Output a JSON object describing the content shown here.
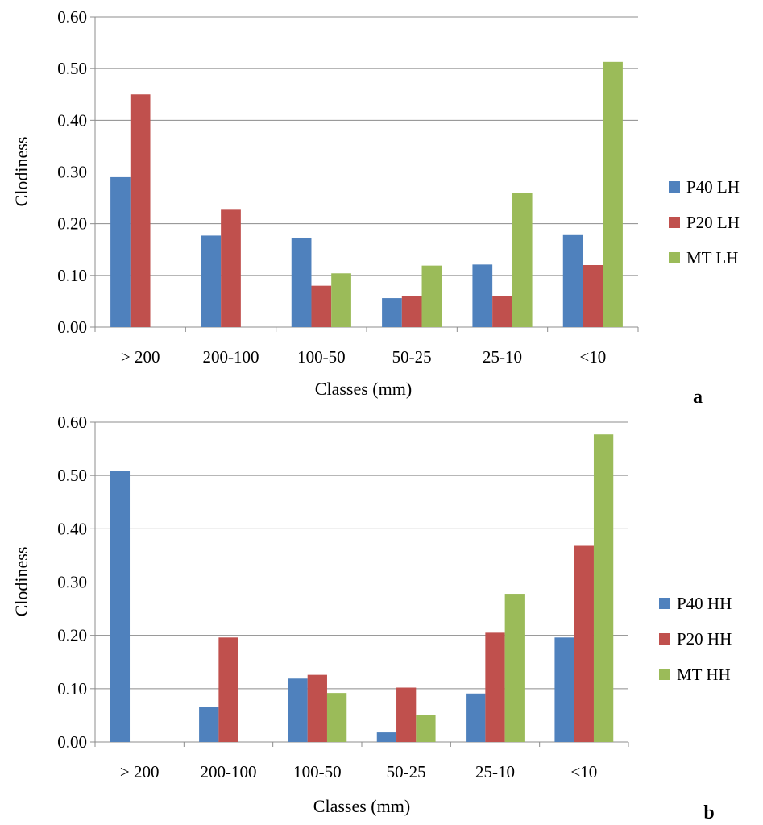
{
  "chart_data": [
    {
      "type": "bar",
      "panel_label": "a",
      "title": "",
      "xlabel": "Classes (mm)",
      "ylabel": "Clodiness",
      "ylim": [
        0,
        0.6
      ],
      "yticks": [
        "0.00",
        "0.10",
        "0.20",
        "0.30",
        "0.40",
        "0.50",
        "0.60"
      ],
      "grid": true,
      "legend_position": "right",
      "categories": [
        "> 200",
        "200-100",
        "100-50",
        "50-25",
        "25-10",
        "<10"
      ],
      "series": [
        {
          "name": "P40 LH",
          "color": "#4f81bd",
          "values": [
            0.29,
            0.177,
            0.173,
            0.056,
            0.121,
            0.178
          ]
        },
        {
          "name": "P20 LH",
          "color": "#c0504d",
          "values": [
            0.45,
            0.227,
            0.08,
            0.06,
            0.06,
            0.12
          ]
        },
        {
          "name": "MT LH",
          "color": "#9bbb59",
          "values": [
            0,
            0,
            0.104,
            0.119,
            0.259,
            0.513
          ]
        }
      ]
    },
    {
      "type": "bar",
      "panel_label": "b",
      "title": "",
      "xlabel": "Classes (mm)",
      "ylabel": "Clodiness",
      "ylim": [
        0,
        0.6
      ],
      "yticks": [
        "0.00",
        "0.10",
        "0.20",
        "0.30",
        "0.40",
        "0.50",
        "0.60"
      ],
      "grid": true,
      "legend_position": "right",
      "categories": [
        "> 200",
        "200-100",
        "100-50",
        "50-25",
        "25-10",
        "<10"
      ],
      "series": [
        {
          "name": "P40 HH",
          "color": "#4f81bd",
          "values": [
            0.508,
            0.065,
            0.119,
            0.018,
            0.091,
            0.196
          ]
        },
        {
          "name": "P20 HH",
          "color": "#c0504d",
          "values": [
            0,
            0.196,
            0.126,
            0.102,
            0.205,
            0.368
          ]
        },
        {
          "name": "MT HH",
          "color": "#9bbb59",
          "values": [
            0,
            0,
            0.092,
            0.051,
            0.278,
            0.577
          ]
        }
      ]
    }
  ]
}
